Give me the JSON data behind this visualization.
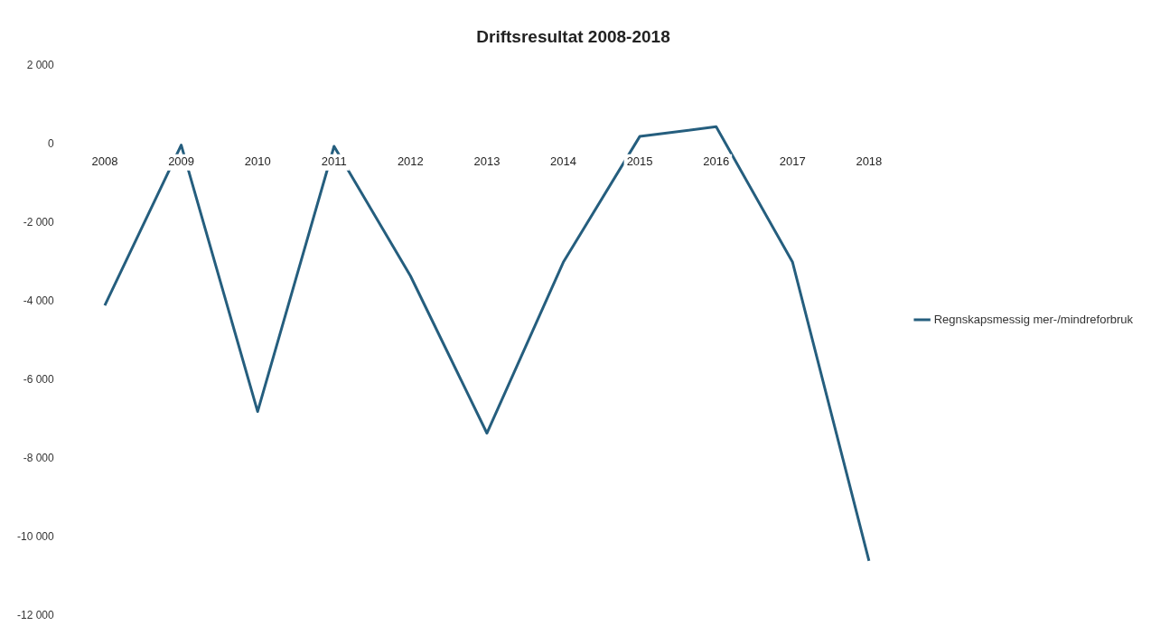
{
  "chart_data": {
    "type": "line",
    "title": "Driftsresultat 2008-2018",
    "categories": [
      "2008",
      "2009",
      "2010",
      "2011",
      "2012",
      "2013",
      "2014",
      "2015",
      "2016",
      "2017",
      "2018"
    ],
    "series": [
      {
        "name": "Regnskapsmessig mer-/mindreforbruk",
        "color": "#255e7e",
        "values": [
          -4100,
          -20,
          -6800,
          -50,
          -3350,
          -7350,
          -3000,
          200,
          450,
          -3000,
          -10600
        ]
      }
    ],
    "ylim": [
      -12000,
      2000
    ],
    "yticks": [
      {
        "value": -12000,
        "label": "-12 000"
      },
      {
        "value": -10000,
        "label": "-10 000"
      },
      {
        "value": -8000,
        "label": "-8 000"
      },
      {
        "value": -6000,
        "label": "-6 000"
      },
      {
        "value": -4000,
        "label": "-4 000"
      },
      {
        "value": -2000,
        "label": "-2 000"
      },
      0,
      {
        "value": 2000,
        "label": "2 000"
      }
    ],
    "grid": false,
    "legend": "right",
    "marker": "none",
    "line_style": "solid"
  }
}
